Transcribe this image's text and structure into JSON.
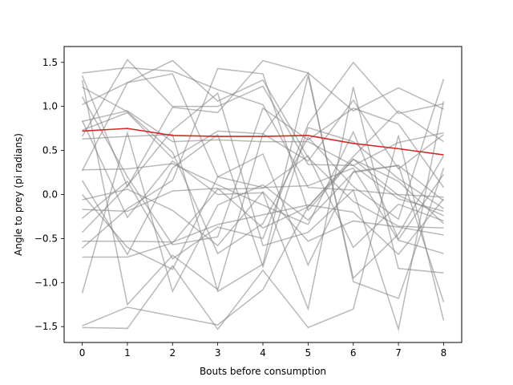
{
  "chart_data": {
    "type": "line",
    "title": "",
    "xlabel": "Bouts before consumption",
    "ylabel": "Angle to prey (pi radians)",
    "xlim": [
      -0.4,
      8.4
    ],
    "ylim": [
      -1.68,
      1.68
    ],
    "x": [
      0,
      1,
      2,
      3,
      4,
      5,
      6,
      7,
      8
    ],
    "xticks": [
      "0",
      "1",
      "2",
      "3",
      "4",
      "5",
      "6",
      "7",
      "8"
    ],
    "yticks": [
      -1.5,
      -1.0,
      -0.5,
      0.0,
      0.5,
      1.0,
      1.5
    ],
    "ytick_labels": [
      "−1.5",
      "−1.0",
      "−0.5",
      "0.0",
      "0.5",
      "1.0",
      "1.5"
    ],
    "grid": false,
    "individual_color": "#808080",
    "mean_color": "#d62728",
    "series": [
      {
        "values": [
          1.38,
          1.44,
          1.4,
          1.19,
          1.02,
          0.08,
          0.05,
          0.0,
          -0.03
        ]
      },
      {
        "values": [
          1.35,
          0.09,
          0.99,
          0.93,
          1.52,
          1.38,
          0.95,
          1.21,
          0.97
        ]
      },
      {
        "values": [
          1.3,
          -1.25,
          -0.69,
          -1.08,
          0.69,
          1.38,
          -0.99,
          -1.18,
          0.3
        ]
      },
      {
        "values": [
          1.22,
          0.94,
          0.48,
          -0.67,
          -0.33,
          0.65,
          0.09,
          -0.28,
          1.31
        ]
      },
      {
        "values": [
          1.11,
          0.2,
          -0.57,
          -0.48,
          0.98,
          0.62,
          0.98,
          0.8,
          0.08
        ]
      },
      {
        "values": [
          1.02,
          1.27,
          1.52,
          1.06,
          1.3,
          0.42,
          -0.08,
          -0.36,
          -0.38
        ]
      },
      {
        "values": [
          0.83,
          0.95,
          0.6,
          0.62,
          0.6,
          0.6,
          0.33,
          -0.05,
          -0.19
        ]
      },
      {
        "values": [
          0.73,
          0.93,
          0.41,
          0.72,
          0.69,
          0.38,
          1.07,
          0.29,
          0.68
        ]
      },
      {
        "values": [
          0.66,
          1.53,
          1.0,
          1.0,
          1.23,
          0.34,
          0.33,
          0.59,
          0.7
        ]
      },
      {
        "values": [
          0.63,
          0.66,
          0.68,
          -1.1,
          -0.79,
          1.35,
          -0.95,
          -0.45,
          0.44
        ]
      },
      {
        "values": [
          0.28,
          0.29,
          0.35,
          0.11,
          -0.12,
          -0.34,
          0.71,
          -0.51,
          0.23
        ]
      },
      {
        "values": [
          0.27,
          1.27,
          1.37,
          0.2,
          0.08,
          0.1,
          0.3,
          -0.52,
          -0.67
        ]
      },
      {
        "values": [
          0.0,
          -0.6,
          -0.85,
          0.2,
          0.46,
          -0.8,
          0.26,
          0.33,
          -1.22
        ]
      },
      {
        "values": [
          -0.06,
          0.06,
          -0.18,
          -0.58,
          0.03,
          -0.53,
          -0.3,
          -0.37,
          -0.46
        ]
      },
      {
        "values": [
          -0.17,
          -0.19,
          0.04,
          0.07,
          -0.38,
          -0.14,
          0.43,
          0.95,
          0.6
        ]
      },
      {
        "values": [
          -0.27,
          0.15,
          -0.73,
          -0.37,
          -0.5,
          0.8,
          1.5,
          0.92,
          1.03
        ]
      },
      {
        "values": [
          -0.43,
          0.1,
          0.73,
          1.15,
          -0.58,
          -0.43,
          0.05,
          -1.53,
          1.06
        ]
      },
      {
        "values": [
          -0.53,
          -0.53,
          -0.54,
          -0.34,
          -0.23,
          -0.12,
          -0.2,
          -0.68,
          -0.05
        ]
      },
      {
        "values": [
          -0.61,
          -0.16,
          0.16,
          1.43,
          1.37,
          -0.18,
          0.4,
          -0.01,
          -0.24
        ]
      },
      {
        "values": [
          -0.71,
          -0.71,
          -0.55,
          0.06,
          0.07,
          0.44,
          -0.6,
          -0.11,
          -0.3
        ]
      },
      {
        "values": [
          -1.12,
          0.7,
          -1.1,
          -0.12,
          0.11,
          -0.29,
          0.25,
          0.33,
          -0.07
        ]
      },
      {
        "values": [
          -1.49,
          -1.28,
          -1.38,
          -1.48,
          -1.08,
          -0.14,
          0.4,
          0.15,
          -0.33
        ]
      },
      {
        "values": [
          -1.51,
          -1.52,
          -0.81,
          -1.53,
          -0.86,
          -1.51,
          -1.3,
          0.67,
          -1.43
        ]
      },
      {
        "values": [
          0.84,
          -0.26,
          0.38,
          0.0,
          0.02,
          -1.3,
          1.22,
          -0.84,
          -0.89
        ]
      },
      {
        "values": [
          0.16,
          -0.68,
          0.3,
          0.68,
          -0.82,
          0.76,
          0.6,
          0.18,
          -0.16
        ]
      }
    ],
    "mean": {
      "values": [
        0.72,
        0.75,
        0.67,
        0.66,
        0.66,
        0.67,
        0.58,
        0.52,
        0.45
      ]
    }
  }
}
